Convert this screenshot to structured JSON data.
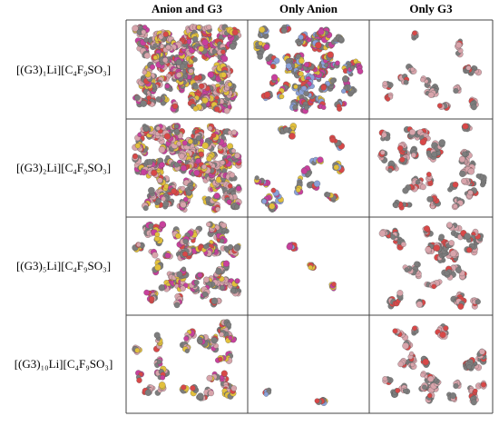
{
  "table": {
    "columns": [
      "Anion and G3",
      "Only Anion",
      "Only G3"
    ],
    "rows": [
      "[(G3)₁Li][C₄F₉SO₃]",
      "[(G3)₂Li][C₄F₉SO₃]",
      "[(G3)₅Li][C₄F₉SO₃]",
      "[(G3)₁₀Li][C₄F₉SO₃]"
    ]
  }
}
